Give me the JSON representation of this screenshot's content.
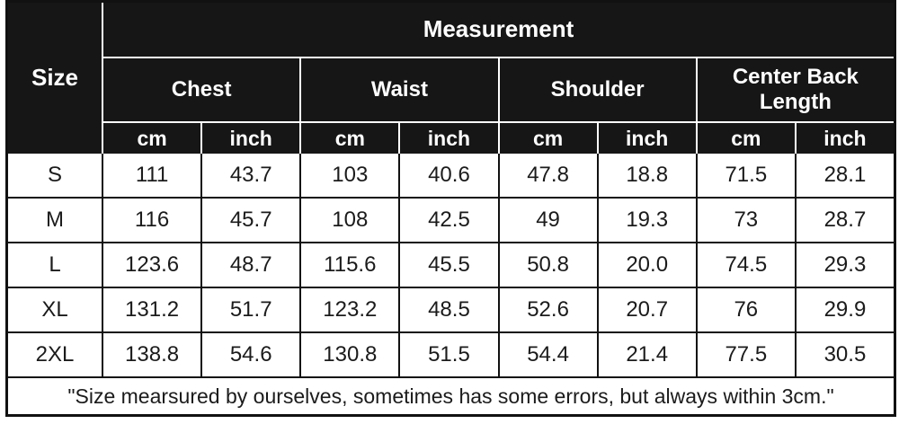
{
  "colors": {
    "header_bg": "#161616",
    "header_text": "#ffffff",
    "body_bg": "#ffffff",
    "body_text": "#1b1b1b",
    "grid_line_body": "#111111",
    "grid_line_header": "#ffffff"
  },
  "chart_data": {
    "type": "table",
    "title": "Measurement",
    "corner_label": "Size",
    "column_groups": [
      "Chest",
      "Waist",
      "Shoulder",
      "Center Back Length"
    ],
    "unit_row": [
      "cm",
      "inch",
      "cm",
      "inch",
      "cm",
      "inch",
      "cm",
      "inch"
    ],
    "rows": [
      {
        "label": "S",
        "cells": [
          "111",
          "43.7",
          "103",
          "40.6",
          "47.8",
          "18.8",
          "71.5",
          "28.1"
        ]
      },
      {
        "label": "M",
        "cells": [
          "116",
          "45.7",
          "108",
          "42.5",
          "49",
          "19.3",
          "73",
          "28.7"
        ]
      },
      {
        "label": "L",
        "cells": [
          "123.6",
          "48.7",
          "115.6",
          "45.5",
          "50.8",
          "20.0",
          "74.5",
          "29.3"
        ]
      },
      {
        "label": "XL",
        "cells": [
          "131.2",
          "51.7",
          "123.2",
          "48.5",
          "52.6",
          "20.7",
          "76",
          "29.9"
        ]
      },
      {
        "label": "2XL",
        "cells": [
          "138.8",
          "54.6",
          "130.8",
          "51.5",
          "54.4",
          "21.4",
          "77.5",
          "30.5"
        ]
      }
    ],
    "footnote": "\"Size mearsured by ourselves, sometimes has some errors, but always within 3cm.\""
  }
}
